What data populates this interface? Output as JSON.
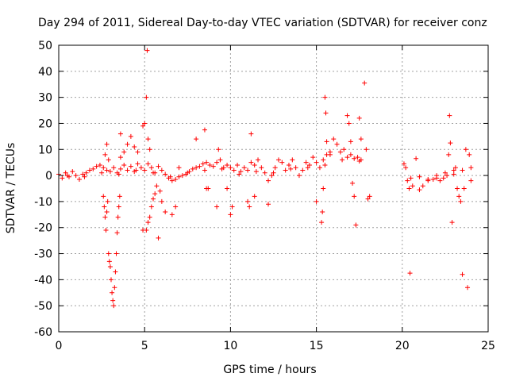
{
  "chart_data": {
    "type": "scatter",
    "title": "Day 294 of 2011, Sidereal Day-to-day VTEC variation (SDTVAR) for receiver conz",
    "xlabel": "GPS time / hours",
    "ylabel": "SDTVAR / TECUs",
    "xlim": [
      0,
      25
    ],
    "ylim": [
      -60,
      50
    ],
    "xticks": [
      0,
      5,
      10,
      15,
      20,
      25
    ],
    "yticks": [
      -60,
      -50,
      -40,
      -30,
      -20,
      -10,
      0,
      10,
      20,
      30,
      40,
      50
    ],
    "grid": true,
    "marker": "+",
    "colors": {
      "series": "#ff0000",
      "grid": "#a0a0a0",
      "axis": "#000000",
      "background": "#ffffff"
    },
    "series": [
      {
        "name": "SDTVAR",
        "points": [
          [
            0.0,
            0.5
          ],
          [
            0.2,
            -1.0
          ],
          [
            0.4,
            1.0
          ],
          [
            0.6,
            -0.5
          ],
          [
            0.8,
            1.5
          ],
          [
            1.0,
            0.0
          ],
          [
            1.2,
            -1.5
          ],
          [
            1.4,
            0.5
          ],
          [
            1.6,
            1.0
          ],
          [
            1.8,
            2.0
          ],
          [
            2.0,
            2.5
          ],
          [
            2.2,
            3.5
          ],
          [
            2.4,
            4.0
          ],
          [
            2.6,
            3.0
          ],
          [
            2.8,
            2.0
          ],
          [
            3.0,
            1.5
          ],
          [
            3.2,
            3.0
          ],
          [
            3.4,
            1.0
          ],
          [
            3.6,
            2.5
          ],
          [
            3.8,
            4.0
          ],
          [
            4.0,
            2.0
          ],
          [
            4.2,
            3.5
          ],
          [
            4.4,
            1.5
          ],
          [
            4.6,
            4.5
          ],
          [
            4.8,
            3.0
          ],
          [
            5.0,
            2.0
          ],
          [
            5.2,
            4.5
          ],
          [
            5.4,
            3.0
          ],
          [
            5.6,
            1.0
          ],
          [
            5.8,
            3.5
          ],
          [
            6.0,
            2.0
          ],
          [
            6.2,
            0.5
          ],
          [
            6.4,
            -1.0
          ],
          [
            6.6,
            -2.0
          ],
          [
            6.8,
            -1.5
          ],
          [
            7.0,
            -0.5
          ],
          [
            7.2,
            0.0
          ],
          [
            7.4,
            0.5
          ],
          [
            7.6,
            1.5
          ],
          [
            7.8,
            2.5
          ],
          [
            8.0,
            3.0
          ],
          [
            8.2,
            3.5
          ],
          [
            8.4,
            4.5
          ],
          [
            8.6,
            5.0
          ],
          [
            8.8,
            4.0
          ],
          [
            9.0,
            3.5
          ],
          [
            9.2,
            5.0
          ],
          [
            9.4,
            6.0
          ],
          [
            9.6,
            3.0
          ],
          [
            9.8,
            4.0
          ],
          [
            10.0,
            3.0
          ],
          [
            10.2,
            2.0
          ],
          [
            10.4,
            4.0
          ],
          [
            10.6,
            1.5
          ],
          [
            10.8,
            3.0
          ],
          [
            11.0,
            2.0
          ],
          [
            11.2,
            5.0
          ],
          [
            11.4,
            4.0
          ],
          [
            11.6,
            6.0
          ],
          [
            11.8,
            3.0
          ],
          [
            12.0,
            1.0
          ],
          [
            12.2,
            -2.0
          ],
          [
            12.4,
            0.0
          ],
          [
            12.6,
            3.0
          ],
          [
            12.8,
            6.0
          ],
          [
            13.0,
            5.0
          ],
          [
            13.2,
            2.0
          ],
          [
            13.4,
            4.0
          ],
          [
            13.6,
            6.0
          ],
          [
            13.8,
            3.0
          ],
          [
            14.0,
            0.0
          ],
          [
            14.2,
            2.0
          ],
          [
            14.4,
            5.0
          ],
          [
            14.6,
            4.0
          ],
          [
            14.8,
            7.0
          ],
          [
            15.0,
            5.0
          ],
          [
            15.2,
            3.0
          ],
          [
            15.4,
            6.0
          ],
          [
            15.6,
            8.0
          ],
          [
            15.8,
            9.0
          ],
          [
            16.0,
            14.0
          ],
          [
            16.2,
            12.0
          ],
          [
            16.4,
            9.0
          ],
          [
            16.6,
            10.0
          ],
          [
            16.8,
            7.0
          ],
          [
            17.0,
            8.0
          ],
          [
            17.2,
            6.5
          ],
          [
            17.4,
            7.0
          ],
          [
            17.6,
            6.0
          ],
          [
            0.5,
            0.0
          ],
          [
            1.5,
            -0.5
          ],
          [
            2.5,
            1.0
          ],
          [
            3.5,
            0.5
          ],
          [
            4.5,
            2.0
          ],
          [
            5.5,
            1.0
          ],
          [
            6.5,
            -0.5
          ],
          [
            7.5,
            1.0
          ],
          [
            8.5,
            2.0
          ],
          [
            9.5,
            2.5
          ],
          [
            10.5,
            0.5
          ],
          [
            11.5,
            1.5
          ],
          [
            12.5,
            1.0
          ],
          [
            13.5,
            2.5
          ],
          [
            14.5,
            3.0
          ],
          [
            15.5,
            4.0
          ],
          [
            16.5,
            6.0
          ],
          [
            17.5,
            5.5
          ],
          [
            2.6,
            -8.0
          ],
          [
            2.65,
            -12.0
          ],
          [
            2.7,
            -16.0
          ],
          [
            2.75,
            -21.0
          ],
          [
            2.8,
            -14.0
          ],
          [
            2.85,
            -10.0
          ],
          [
            2.9,
            -30.0
          ],
          [
            2.95,
            -33.0
          ],
          [
            3.0,
            -35.0
          ],
          [
            3.05,
            -40.0
          ],
          [
            3.1,
            -45.0
          ],
          [
            3.15,
            -48.0
          ],
          [
            3.2,
            -50.0
          ],
          [
            3.25,
            -43.0
          ],
          [
            3.3,
            -37.0
          ],
          [
            3.35,
            -30.0
          ],
          [
            3.4,
            -22.0
          ],
          [
            3.45,
            -16.0
          ],
          [
            3.5,
            -12.0
          ],
          [
            3.55,
            -8.0
          ],
          [
            2.7,
            8.0
          ],
          [
            2.8,
            12.0
          ],
          [
            2.9,
            6.0
          ],
          [
            3.6,
            7.0
          ],
          [
            3.6,
            16.0
          ],
          [
            3.8,
            9.0
          ],
          [
            4.0,
            12.0
          ],
          [
            4.2,
            15.0
          ],
          [
            4.4,
            11.0
          ],
          [
            4.6,
            9.0
          ],
          [
            4.9,
            19.0
          ],
          [
            5.0,
            20.0
          ],
          [
            5.1,
            30.0
          ],
          [
            5.15,
            48.0
          ],
          [
            5.2,
            14.0
          ],
          [
            5.3,
            10.0
          ],
          [
            4.9,
            -21.0
          ],
          [
            5.1,
            -21.0
          ],
          [
            5.2,
            -18.0
          ],
          [
            5.3,
            -16.0
          ],
          [
            5.4,
            -12.0
          ],
          [
            5.5,
            -9.0
          ],
          [
            5.6,
            -7.0
          ],
          [
            5.7,
            -4.0
          ],
          [
            5.8,
            -24.0
          ],
          [
            5.9,
            -6.0
          ],
          [
            6.0,
            -10.0
          ],
          [
            6.2,
            -14.0
          ],
          [
            6.6,
            -15.0
          ],
          [
            6.8,
            -12.0
          ],
          [
            7.0,
            3.0
          ],
          [
            8.0,
            14.0
          ],
          [
            8.5,
            17.5
          ],
          [
            8.6,
            -5.0
          ],
          [
            8.7,
            -5.0
          ],
          [
            9.2,
            -12.0
          ],
          [
            9.3,
            10.0
          ],
          [
            9.8,
            -5.0
          ],
          [
            10.0,
            -15.0
          ],
          [
            10.1,
            -12.0
          ],
          [
            11.0,
            -10.0
          ],
          [
            11.1,
            -12.0
          ],
          [
            11.2,
            16.0
          ],
          [
            11.4,
            -8.0
          ],
          [
            12.2,
            -11.0
          ],
          [
            15.0,
            -10.0
          ],
          [
            15.3,
            -18.0
          ],
          [
            15.35,
            -14.0
          ],
          [
            15.4,
            -5.0
          ],
          [
            15.5,
            30.0
          ],
          [
            15.55,
            24.0
          ],
          [
            15.6,
            13.0
          ],
          [
            15.8,
            8.0
          ],
          [
            16.8,
            23.0
          ],
          [
            16.9,
            20.0
          ],
          [
            17.0,
            13.0
          ],
          [
            17.1,
            -3.0
          ],
          [
            17.2,
            -8.0
          ],
          [
            17.3,
            -19.0
          ],
          [
            17.5,
            22.0
          ],
          [
            17.6,
            14.0
          ],
          [
            17.8,
            35.5
          ],
          [
            17.9,
            10.0
          ],
          [
            18.0,
            -9.0
          ],
          [
            18.1,
            -8.0
          ],
          [
            20.1,
            4.5
          ],
          [
            20.2,
            3.0
          ],
          [
            20.3,
            -2.0
          ],
          [
            20.4,
            -5.0
          ],
          [
            20.45,
            -37.5
          ],
          [
            20.6,
            -4.0
          ],
          [
            20.8,
            6.5
          ],
          [
            21.0,
            -5.5
          ],
          [
            21.2,
            -4.0
          ],
          [
            21.5,
            -2.0
          ],
          [
            21.8,
            -1.5
          ],
          [
            22.0,
            -1.0
          ],
          [
            22.2,
            -2.0
          ],
          [
            22.4,
            -1.0
          ],
          [
            22.6,
            0.0
          ],
          [
            22.7,
            8.0
          ],
          [
            22.75,
            23.0
          ],
          [
            22.8,
            12.5
          ],
          [
            22.9,
            -18.0
          ],
          [
            23.0,
            2.0
          ],
          [
            23.1,
            3.0
          ],
          [
            23.2,
            -5.0
          ],
          [
            23.3,
            -8.0
          ],
          [
            23.4,
            -10.0
          ],
          [
            23.5,
            -38.0
          ],
          [
            23.6,
            -5.0
          ],
          [
            23.7,
            10.0
          ],
          [
            23.8,
            -43.0
          ],
          [
            23.9,
            8.0
          ],
          [
            24.0,
            3.0
          ],
          [
            20.5,
            -1.0
          ],
          [
            21.0,
            -0.5
          ],
          [
            21.5,
            -1.5
          ],
          [
            22.0,
            0.0
          ],
          [
            22.5,
            1.0
          ],
          [
            23.0,
            0.5
          ],
          [
            23.5,
            2.0
          ],
          [
            24.0,
            -2.0
          ]
        ]
      }
    ]
  }
}
